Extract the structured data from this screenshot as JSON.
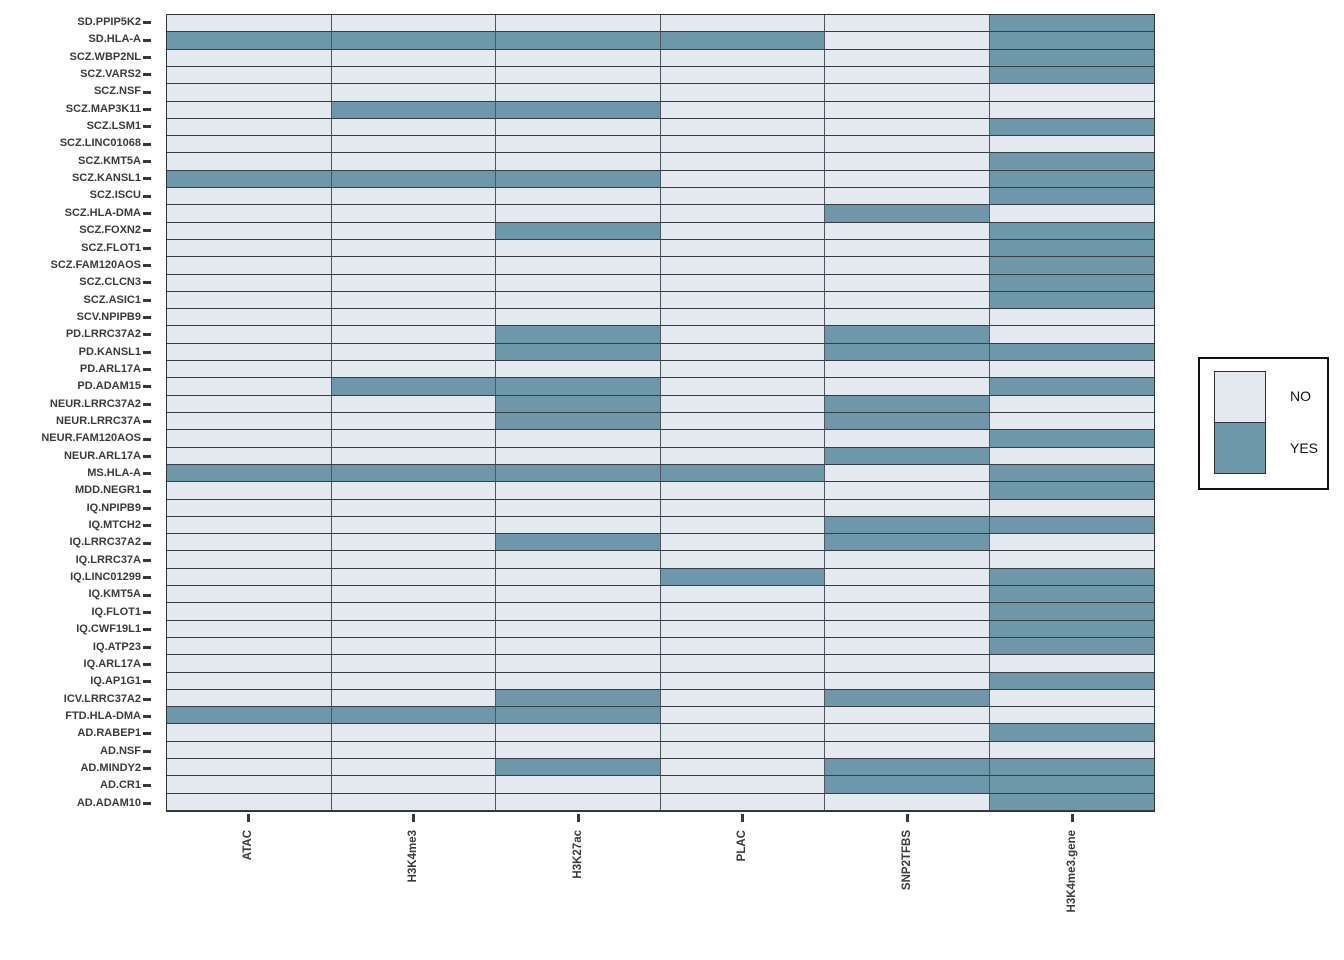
{
  "chart_data": {
    "type": "heatmap",
    "title": "",
    "xlabel": "",
    "ylabel": "",
    "legend_position": "right",
    "grid": "on",
    "value_scale": {
      "0": "NO",
      "1": "YES"
    },
    "colors": {
      "yes": "#6f97aa",
      "no": "#e3e9ef",
      "cell_border": "#343d45",
      "column_border": "#4d565e",
      "outer_border": "#2b333b",
      "tick": "#333a40",
      "label_text": "#3b3b3b"
    },
    "legend": {
      "no_label": "NO",
      "yes_label": "YES"
    },
    "columns": [
      "ATAC",
      "H3K4me3",
      "H3K27ac",
      "PLAC",
      "SNP2TFBS",
      "H3K4me3.gene"
    ],
    "rows": [
      {
        "label": "SD.PPIP5K2",
        "values": [
          0,
          0,
          0,
          0,
          0,
          1
        ]
      },
      {
        "label": "SD.HLA-A",
        "values": [
          1,
          1,
          1,
          1,
          0,
          1
        ]
      },
      {
        "label": "SCZ.WBP2NL",
        "values": [
          0,
          0,
          0,
          0,
          0,
          1
        ]
      },
      {
        "label": "SCZ.VARS2",
        "values": [
          0,
          0,
          0,
          0,
          0,
          1
        ]
      },
      {
        "label": "SCZ.NSF",
        "values": [
          0,
          0,
          0,
          0,
          0,
          0
        ]
      },
      {
        "label": "SCZ.MAP3K11",
        "values": [
          0,
          1,
          1,
          0,
          0,
          0
        ]
      },
      {
        "label": "SCZ.LSM1",
        "values": [
          0,
          0,
          0,
          0,
          0,
          1
        ]
      },
      {
        "label": "SCZ.LINC01068",
        "values": [
          0,
          0,
          0,
          0,
          0,
          0
        ]
      },
      {
        "label": "SCZ.KMT5A",
        "values": [
          0,
          0,
          0,
          0,
          0,
          1
        ]
      },
      {
        "label": "SCZ.KANSL1",
        "values": [
          1,
          1,
          1,
          0,
          0,
          1
        ]
      },
      {
        "label": "SCZ.ISCU",
        "values": [
          0,
          0,
          0,
          0,
          0,
          1
        ]
      },
      {
        "label": "SCZ.HLA-DMA",
        "values": [
          0,
          0,
          0,
          0,
          1,
          0
        ]
      },
      {
        "label": "SCZ.FOXN2",
        "values": [
          0,
          0,
          1,
          0,
          0,
          1
        ]
      },
      {
        "label": "SCZ.FLOT1",
        "values": [
          0,
          0,
          0,
          0,
          0,
          1
        ]
      },
      {
        "label": "SCZ.FAM120AOS",
        "values": [
          0,
          0,
          0,
          0,
          0,
          1
        ]
      },
      {
        "label": "SCZ.CLCN3",
        "values": [
          0,
          0,
          0,
          0,
          0,
          1
        ]
      },
      {
        "label": "SCZ.ASIC1",
        "values": [
          0,
          0,
          0,
          0,
          0,
          1
        ]
      },
      {
        "label": "SCV.NPIPB9",
        "values": [
          0,
          0,
          0,
          0,
          0,
          0
        ]
      },
      {
        "label": "PD.LRRC37A2",
        "values": [
          0,
          0,
          1,
          0,
          1,
          0
        ]
      },
      {
        "label": "PD.KANSL1",
        "values": [
          0,
          0,
          1,
          0,
          1,
          1
        ]
      },
      {
        "label": "PD.ARL17A",
        "values": [
          0,
          0,
          0,
          0,
          0,
          0
        ]
      },
      {
        "label": "PD.ADAM15",
        "values": [
          0,
          1,
          1,
          0,
          0,
          1
        ]
      },
      {
        "label": "NEUR.LRRC37A2",
        "values": [
          0,
          0,
          1,
          0,
          1,
          0
        ]
      },
      {
        "label": "NEUR.LRRC37A",
        "values": [
          0,
          0,
          1,
          0,
          1,
          0
        ]
      },
      {
        "label": "NEUR.FAM120AOS",
        "values": [
          0,
          0,
          0,
          0,
          0,
          1
        ]
      },
      {
        "label": "NEUR.ARL17A",
        "values": [
          0,
          0,
          0,
          0,
          1,
          0
        ]
      },
      {
        "label": "MS.HLA-A",
        "values": [
          1,
          1,
          1,
          1,
          0,
          1
        ]
      },
      {
        "label": "MDD.NEGR1",
        "values": [
          0,
          0,
          0,
          0,
          0,
          1
        ]
      },
      {
        "label": "IQ.NPIPB9",
        "values": [
          0,
          0,
          0,
          0,
          0,
          0
        ]
      },
      {
        "label": "IQ.MTCH2",
        "values": [
          0,
          0,
          0,
          0,
          1,
          1
        ]
      },
      {
        "label": "IQ.LRRC37A2",
        "values": [
          0,
          0,
          1,
          0,
          1,
          0
        ]
      },
      {
        "label": "IQ.LRRC37A",
        "values": [
          0,
          0,
          0,
          0,
          0,
          0
        ]
      },
      {
        "label": "IQ.LINC01299",
        "values": [
          0,
          0,
          0,
          1,
          0,
          1
        ]
      },
      {
        "label": "IQ.KMT5A",
        "values": [
          0,
          0,
          0,
          0,
          0,
          1
        ]
      },
      {
        "label": "IQ.FLOT1",
        "values": [
          0,
          0,
          0,
          0,
          0,
          1
        ]
      },
      {
        "label": "IQ.CWF19L1",
        "values": [
          0,
          0,
          0,
          0,
          0,
          1
        ]
      },
      {
        "label": "IQ.ATP23",
        "values": [
          0,
          0,
          0,
          0,
          0,
          1
        ]
      },
      {
        "label": "IQ.ARL17A",
        "values": [
          0,
          0,
          0,
          0,
          0,
          0
        ]
      },
      {
        "label": "IQ.AP1G1",
        "values": [
          0,
          0,
          0,
          0,
          0,
          1
        ]
      },
      {
        "label": "ICV.LRRC37A2",
        "values": [
          0,
          0,
          1,
          0,
          1,
          0
        ]
      },
      {
        "label": "FTD.HLA-DMA",
        "values": [
          1,
          1,
          1,
          0,
          0,
          0
        ]
      },
      {
        "label": "AD.RABEP1",
        "values": [
          0,
          0,
          0,
          0,
          0,
          1
        ]
      },
      {
        "label": "AD.NSF",
        "values": [
          0,
          0,
          0,
          0,
          0,
          0
        ]
      },
      {
        "label": "AD.MINDY2",
        "values": [
          0,
          0,
          1,
          0,
          1,
          1
        ]
      },
      {
        "label": "AD.CR1",
        "values": [
          0,
          0,
          0,
          0,
          1,
          1
        ]
      },
      {
        "label": "AD.ADAM10",
        "values": [
          0,
          0,
          0,
          0,
          0,
          1
        ]
      }
    ]
  }
}
